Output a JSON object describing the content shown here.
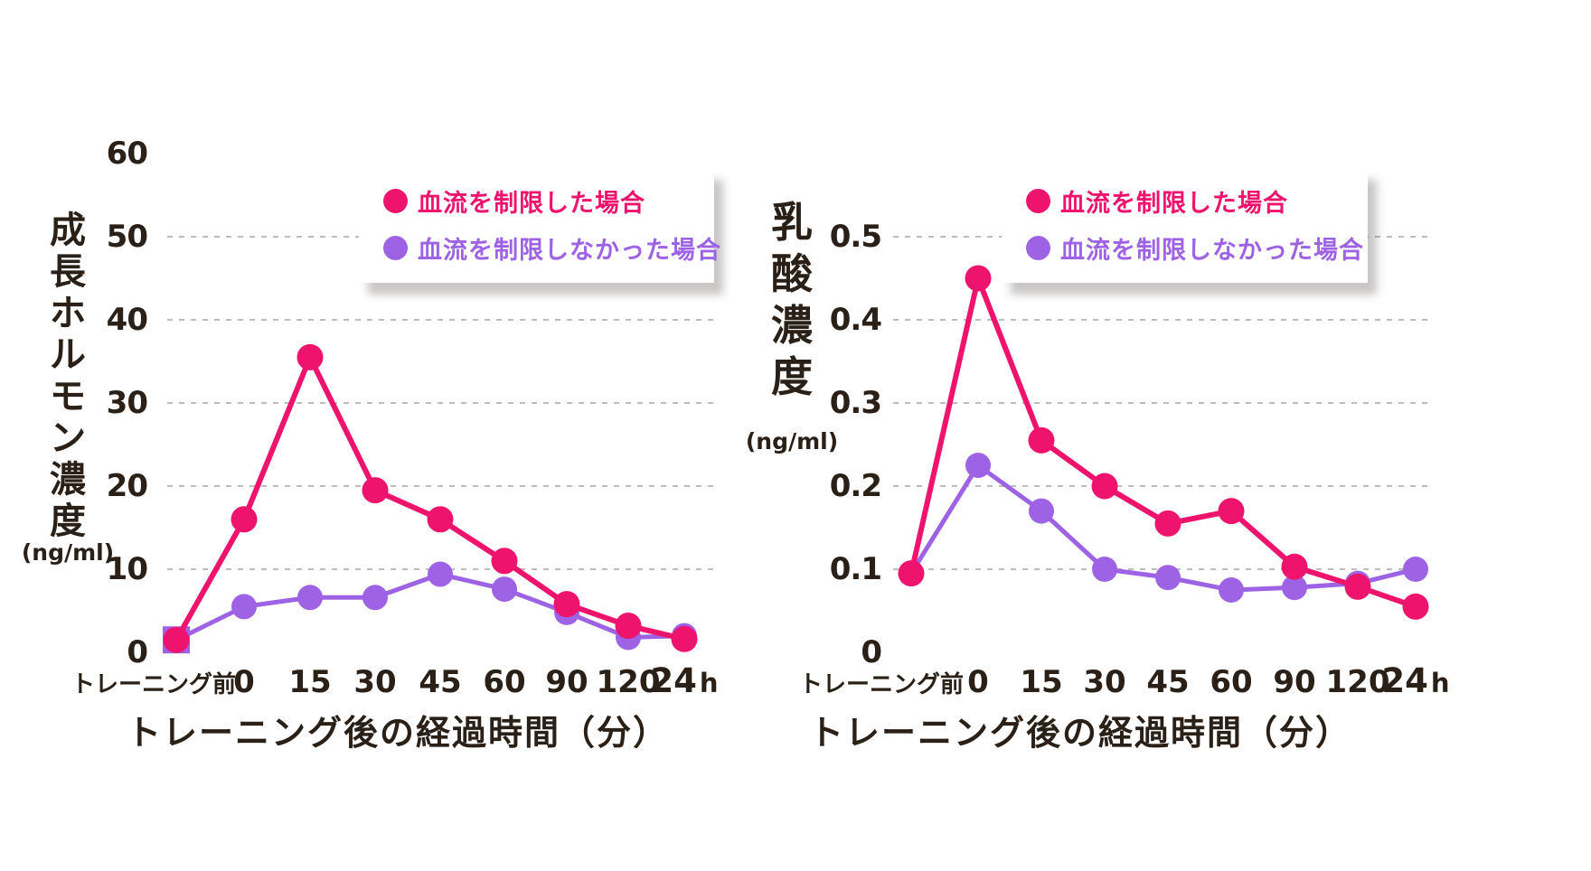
{
  "colors": {
    "restricted_pink": "#EE146E",
    "unrestricted_purple": "#9D63E4",
    "text_dark": "#2A2018",
    "gridline_gray": "#BDBDBD",
    "background": "#FFFFFF"
  },
  "legend": {
    "restricted_label": "血流を制限した場合",
    "unrestricted_label": "血流を制限しなかった場合"
  },
  "chart_data": [
    {
      "id": "growth-hormone",
      "type": "line",
      "y_axis_title": "成長ホルモン濃度",
      "y_axis_unit": "(ng/ml)",
      "x_axis_title": "トレーニング後の経過時間（分）",
      "categories": [
        "トレーニング前",
        "0",
        "15",
        "30",
        "45",
        "60",
        "90",
        "120",
        "24h"
      ],
      "ylim": [
        0,
        60
      ],
      "y_ticks": [
        60,
        50,
        40,
        30,
        20,
        10,
        0
      ],
      "grid_ticks": [
        50,
        40,
        30,
        20,
        10
      ],
      "grid_style": "dashed",
      "legend_position": "top-right",
      "series": [
        {
          "name": "血流を制限しなかった場合",
          "key": "unrestricted",
          "marker": "circle",
          "first_marker": "square",
          "values": [
            1.5,
            5.5,
            6.6,
            6.6,
            9.4,
            7.6,
            4.8,
            1.8,
            2.0
          ]
        },
        {
          "name": "血流を制限した場合",
          "key": "restricted",
          "marker": "circle",
          "first_marker": "circle",
          "values": [
            1.5,
            16,
            35.5,
            19.5,
            16,
            11,
            5.8,
            3.2,
            1.6
          ]
        }
      ]
    },
    {
      "id": "lactate",
      "type": "line",
      "y_axis_title": "乳酸濃度",
      "y_axis_unit": "(ng/ml)",
      "x_axis_title": "トレーニング後の経過時間（分）",
      "categories": [
        "トレーニング前",
        "0",
        "15",
        "30",
        "45",
        "60",
        "90",
        "120",
        "24h"
      ],
      "ylim": [
        0,
        0.5
      ],
      "y_ticks": [
        0.5,
        0.4,
        0.3,
        0.2,
        0.1,
        0
      ],
      "grid_ticks": [
        0.5,
        0.4,
        0.3,
        0.2,
        0.1
      ],
      "grid_style": "dashed",
      "legend_position": "top-right",
      "series": [
        {
          "name": "血流を制限しなかった場合",
          "key": "unrestricted",
          "marker": "circle",
          "first_marker": "circle",
          "values": [
            0.095,
            0.225,
            0.17,
            0.1,
            0.09,
            0.075,
            0.078,
            0.083,
            0.1
          ]
        },
        {
          "name": "血流を制限した場合",
          "key": "restricted",
          "marker": "circle",
          "first_marker": "circle",
          "values": [
            0.095,
            0.45,
            0.255,
            0.2,
            0.155,
            0.17,
            0.103,
            0.079,
            0.055
          ]
        }
      ]
    }
  ]
}
